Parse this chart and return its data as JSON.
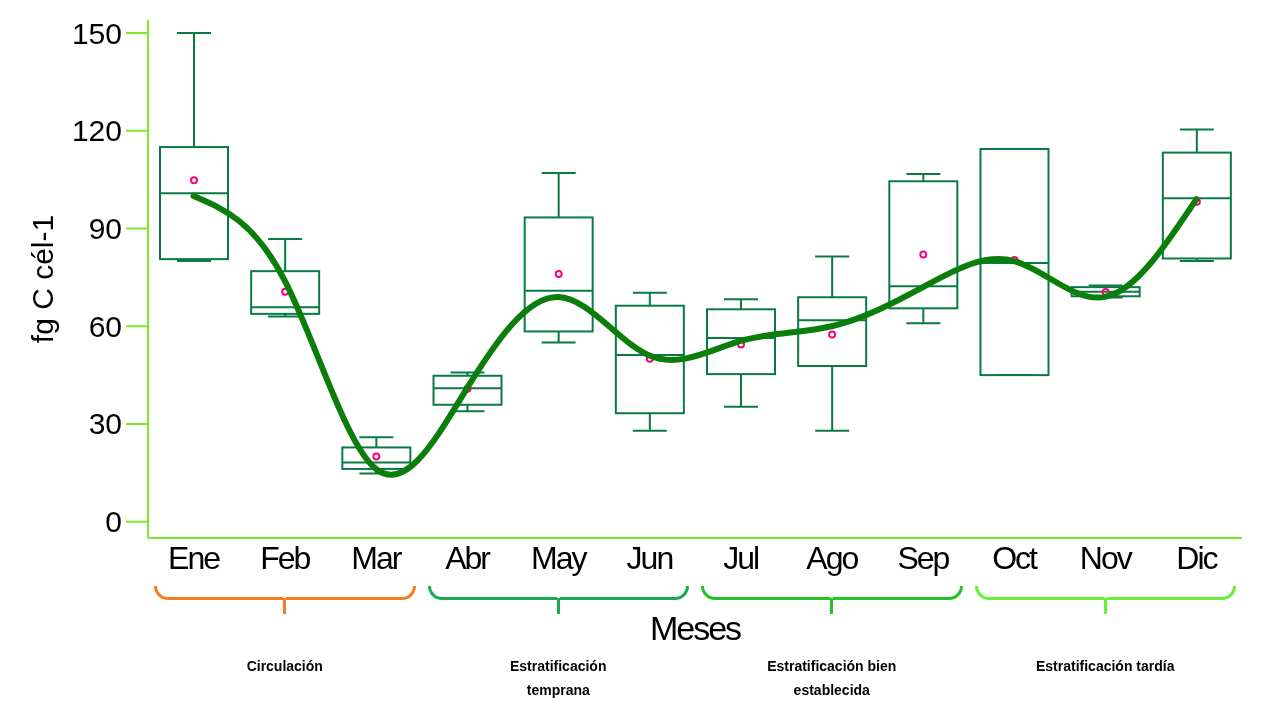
{
  "chart_data": {
    "type": "box",
    "xlabel": "Meses",
    "ylabel": "fg C cél-1",
    "categories": [
      "Ene",
      "Feb",
      "Mar",
      "Abr",
      "May",
      "Jun",
      "Jul",
      "Ago",
      "Sep",
      "Oct",
      "Nov",
      "Dic"
    ],
    "ylim": [
      -5,
      154
    ],
    "yticks": [
      0,
      30,
      60,
      90,
      120,
      150
    ],
    "series": [
      {
        "type": "box",
        "color": "#0a7a45",
        "boxes": [
          {
            "low": 80,
            "q1": 80.6,
            "median": 100.8,
            "q3": 115,
            "high": 150,
            "mean": 104.8
          },
          {
            "low": 63,
            "q1": 63.8,
            "median": 65.8,
            "q3": 76.9,
            "high": 86.8,
            "mean": 70.6
          },
          {
            "low": 14.8,
            "q1": 16.2,
            "median": 18.2,
            "q3": 22.8,
            "high": 25.9,
            "mean": 20
          },
          {
            "low": 33.9,
            "q1": 35.9,
            "median": 41,
            "q3": 44.8,
            "high": 45.8,
            "mean": 40.8
          },
          {
            "low": 55,
            "q1": 58.4,
            "median": 70.9,
            "q3": 93.4,
            "high": 107,
            "mean": 76
          },
          {
            "low": 27.9,
            "q1": 33.3,
            "median": 51.2,
            "q3": 66.3,
            "high": 70.3,
            "mean": 50
          },
          {
            "low": 35.3,
            "q1": 45.3,
            "median": 56.4,
            "q3": 65.2,
            "high": 68.3,
            "mean": 54.4
          },
          {
            "low": 27.9,
            "q1": 47.8,
            "median": 61.8,
            "q3": 68.9,
            "high": 81.4,
            "mean": 57.5
          },
          {
            "low": 60.9,
            "q1": 65.5,
            "median": 72.3,
            "q3": 104.5,
            "high": 106.7,
            "mean": 82
          },
          {
            "low": 45,
            "q1": 45,
            "median": 79.4,
            "q3": 114.4,
            "high": 114.4,
            "mean": 80.3
          },
          {
            "low": 68.8,
            "q1": 69.2,
            "median": 70.6,
            "q3": 72,
            "high": 72.5,
            "mean": 70.5
          },
          {
            "low": 80,
            "q1": 80.8,
            "median": 99.3,
            "q3": 113.3,
            "high": 120.4,
            "mean": 98.2
          }
        ]
      },
      {
        "type": "line",
        "color": "#0a7d0a",
        "values": [
          100,
          74,
          16.2,
          41,
          69,
          51,
          55.5,
          60,
          72,
          80,
          69,
          99
        ]
      }
    ],
    "annotations": [
      "Circulación",
      "Estratificación temprana",
      "Estratificación bien establecida",
      "Estratificación tardía"
    ]
  }
}
